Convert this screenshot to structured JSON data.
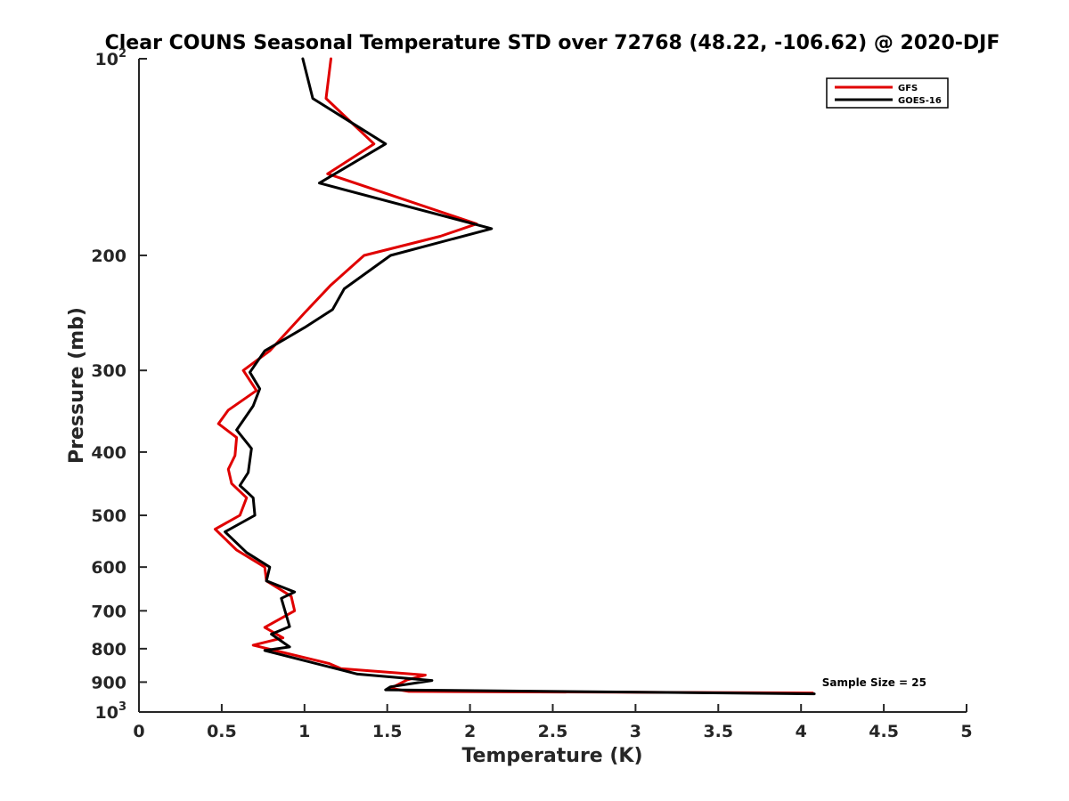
{
  "chart_data": {
    "type": "line",
    "title": "Clear COUNS Seasonal Temperature STD over 72768 (48.22, -106.62) @ 2020-DJF",
    "xlabel": "Temperature (K)",
    "ylabel": "Pressure (mb)",
    "xlim": [
      0,
      5
    ],
    "ylim": [
      100,
      1000
    ],
    "yscale": "log",
    "y_reversed": true,
    "x_ticks": [
      0,
      0.5,
      1,
      1.5,
      2,
      2.5,
      3,
      3.5,
      4,
      4.5,
      5
    ],
    "x_tick_labels": [
      "0",
      "0.5",
      "1",
      "1.5",
      "2",
      "2.5",
      "3",
      "3.5",
      "4",
      "4.5",
      "5"
    ],
    "y_ticks": [
      100,
      200,
      300,
      400,
      500,
      600,
      700,
      800,
      900,
      1000
    ],
    "y_tick_labels": [
      {
        "base": "10",
        "exp": "2"
      },
      {
        "base": "200",
        "exp": ""
      },
      {
        "base": "300",
        "exp": ""
      },
      {
        "base": "400",
        "exp": ""
      },
      {
        "base": "500",
        "exp": ""
      },
      {
        "base": "600",
        "exp": ""
      },
      {
        "base": "700",
        "exp": ""
      },
      {
        "base": "800",
        "exp": ""
      },
      {
        "base": "900",
        "exp": ""
      },
      {
        "base": "10",
        "exp": "3"
      }
    ],
    "grid": false,
    "legend_position": "top-right",
    "annotation": "Sample Size = 25",
    "series": [
      {
        "name": "GFS",
        "color": "#e00000",
        "points": [
          [
            1.16,
            100
          ],
          [
            1.13,
            115
          ],
          [
            1.42,
            135
          ],
          [
            1.14,
            150
          ],
          [
            2.04,
            179
          ],
          [
            1.82,
            187
          ],
          [
            1.36,
            200
          ],
          [
            1.16,
            222
          ],
          [
            1.0,
            245
          ],
          [
            0.79,
            280
          ],
          [
            0.63,
            300
          ],
          [
            0.71,
            322
          ],
          [
            0.54,
            345
          ],
          [
            0.48,
            362
          ],
          [
            0.59,
            380
          ],
          [
            0.58,
            405
          ],
          [
            0.54,
            425
          ],
          [
            0.56,
            447
          ],
          [
            0.65,
            470
          ],
          [
            0.61,
            500
          ],
          [
            0.46,
            525
          ],
          [
            0.59,
            565
          ],
          [
            0.76,
            600
          ],
          [
            0.77,
            630
          ],
          [
            0.92,
            665
          ],
          [
            0.94,
            700
          ],
          [
            0.76,
            742
          ],
          [
            0.87,
            770
          ],
          [
            0.69,
            790
          ],
          [
            1.15,
            843
          ],
          [
            1.22,
            858
          ],
          [
            1.73,
            878
          ],
          [
            1.62,
            893
          ],
          [
            1.52,
            920
          ],
          [
            1.63,
            930
          ],
          [
            4.07,
            935
          ]
        ]
      },
      {
        "name": "GOES-16",
        "color": "#000000",
        "points": [
          [
            0.99,
            100
          ],
          [
            1.05,
            115
          ],
          [
            1.49,
            135
          ],
          [
            1.09,
            155
          ],
          [
            2.13,
            182
          ],
          [
            1.52,
            200
          ],
          [
            1.24,
            225
          ],
          [
            1.17,
            242
          ],
          [
            1.0,
            258
          ],
          [
            0.76,
            280
          ],
          [
            0.67,
            302
          ],
          [
            0.73,
            320
          ],
          [
            0.69,
            340
          ],
          [
            0.59,
            370
          ],
          [
            0.68,
            395
          ],
          [
            0.66,
            430
          ],
          [
            0.61,
            450
          ],
          [
            0.69,
            470
          ],
          [
            0.7,
            500
          ],
          [
            0.52,
            530
          ],
          [
            0.65,
            570
          ],
          [
            0.79,
            600
          ],
          [
            0.77,
            630
          ],
          [
            0.94,
            655
          ],
          [
            0.86,
            670
          ],
          [
            0.91,
            740
          ],
          [
            0.8,
            760
          ],
          [
            0.91,
            795
          ],
          [
            0.76,
            805
          ],
          [
            1.32,
            875
          ],
          [
            1.77,
            895
          ],
          [
            1.52,
            915
          ],
          [
            1.49,
            925
          ],
          [
            4.08,
            938
          ]
        ]
      }
    ]
  }
}
